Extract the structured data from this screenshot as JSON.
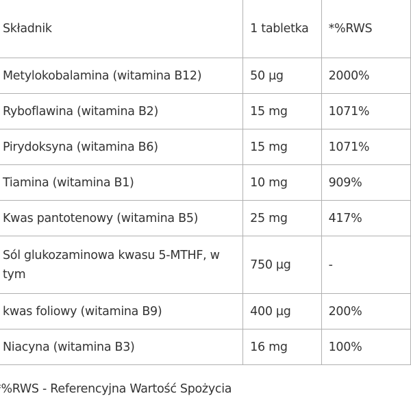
{
  "table": {
    "headers": [
      "Składnik",
      "1 tabletka",
      "*%RWS"
    ],
    "rows": [
      [
        "Metylokobalamina (witamina B12)",
        "50 µg",
        "2000%"
      ],
      [
        "Ryboflawina (witamina B2)",
        "15 mg",
        "1071%"
      ],
      [
        "Pirydoksyna (witamina B6)",
        "15 mg",
        "1071%"
      ],
      [
        "Tiamina (witamina B1)",
        "10 mg",
        "909%"
      ],
      [
        "Kwas pantotenowy (witamina B5)",
        "25 mg",
        "417%"
      ],
      [
        "Sól glukozaminowa kwasu 5-MTHF, w tym",
        "750 µg",
        "-"
      ],
      [
        "kwas foliowy (witamina B9)",
        "400 µg",
        "200%"
      ],
      [
        "Niacyna (witamina B3)",
        "16 mg",
        "100%"
      ]
    ]
  },
  "footnote": "*%RWS - Referencyjna Wartość Spożycia"
}
